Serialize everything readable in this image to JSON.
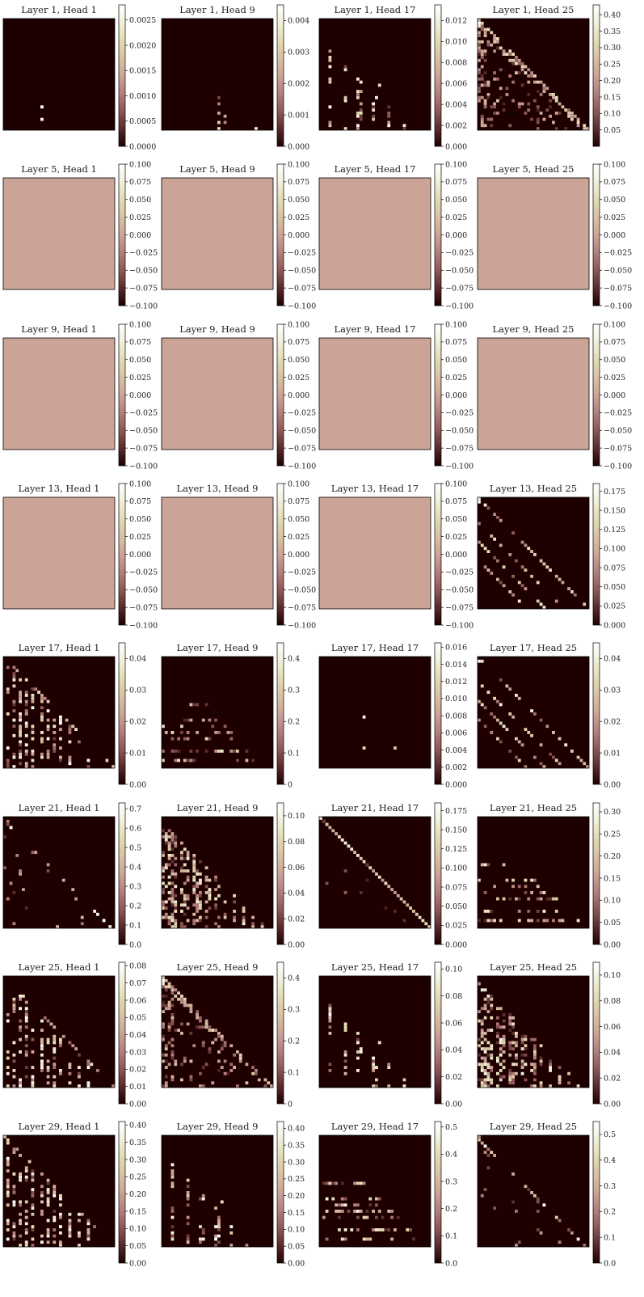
{
  "figure": {
    "colormap": "pink",
    "colormap_stops": [
      "#1e0000",
      "#5a2b2b",
      "#8e5858",
      "#b47f7f",
      "#cca497",
      "#d8c2a3",
      "#e2dbb3",
      "#f2f0dc",
      "#ffffff"
    ],
    "background": "#ffffff"
  },
  "chart_data": [
    {
      "type": "heatmap",
      "title": "Layer 1, Head 1",
      "colorbar_ticks": [
        "0.0000",
        "0.0005",
        "0.0010",
        "0.0015",
        "0.0020",
        "0.0025"
      ],
      "vmin": 0,
      "vmax": 0.0028,
      "uniform": false,
      "pattern": "sparse_two"
    },
    {
      "type": "heatmap",
      "title": "Layer 1, Head 9",
      "colorbar_ticks": [
        "0.000",
        "0.001",
        "0.002",
        "0.003",
        "0.004"
      ],
      "vmin": 0,
      "vmax": 0.0045,
      "uniform": false,
      "pattern": "sparse_bottom"
    },
    {
      "type": "heatmap",
      "title": "Layer 1, Head 17",
      "colorbar_ticks": [
        "0.000",
        "0.002",
        "0.004",
        "0.006",
        "0.008",
        "0.010",
        "0.012"
      ],
      "vmin": 0,
      "vmax": 0.0135,
      "uniform": false,
      "pattern": "sparse_columns"
    },
    {
      "type": "heatmap",
      "title": "Layer 1, Head 25",
      "colorbar_ticks": [
        "0.05",
        "0.10",
        "0.15",
        "0.20",
        "0.25",
        "0.30",
        "0.35",
        "0.40"
      ],
      "vmin": 0,
      "vmax": 0.43,
      "uniform": false,
      "pattern": "dense_triangle"
    },
    {
      "type": "heatmap",
      "title": "Layer 5, Head 1",
      "colorbar_ticks": [
        "−0.100",
        "−0.075",
        "−0.050",
        "−0.025",
        "0.000",
        "0.025",
        "0.050",
        "0.075",
        "0.100"
      ],
      "vmin": -0.1,
      "vmax": 0.1,
      "uniform": true,
      "value": 0.0
    },
    {
      "type": "heatmap",
      "title": "Layer 5, Head 9",
      "colorbar_ticks": [
        "−0.100",
        "−0.075",
        "−0.050",
        "−0.025",
        "0.000",
        "0.025",
        "0.050",
        "0.075",
        "0.100"
      ],
      "vmin": -0.1,
      "vmax": 0.1,
      "uniform": true,
      "value": 0.0
    },
    {
      "type": "heatmap",
      "title": "Layer 5, Head 17",
      "colorbar_ticks": [
        "−0.100",
        "−0.075",
        "−0.050",
        "−0.025",
        "0.000",
        "0.025",
        "0.050",
        "0.075",
        "0.100"
      ],
      "vmin": -0.1,
      "vmax": 0.1,
      "uniform": true,
      "value": 0.0
    },
    {
      "type": "heatmap",
      "title": "Layer 5, Head 25",
      "colorbar_ticks": [
        "−0.100",
        "−0.075",
        "−0.050",
        "−0.025",
        "0.000",
        "0.025",
        "0.050",
        "0.075",
        "0.100"
      ],
      "vmin": -0.1,
      "vmax": 0.1,
      "uniform": true,
      "value": 0.0
    },
    {
      "type": "heatmap",
      "title": "Layer 9, Head 1",
      "colorbar_ticks": [
        "−0.100",
        "−0.075",
        "−0.050",
        "−0.025",
        "0.000",
        "0.025",
        "0.050",
        "0.075",
        "0.100"
      ],
      "vmin": -0.1,
      "vmax": 0.1,
      "uniform": true,
      "value": 0.0
    },
    {
      "type": "heatmap",
      "title": "Layer 9, Head 9",
      "colorbar_ticks": [
        "−0.100",
        "−0.075",
        "−0.050",
        "−0.025",
        "0.000",
        "0.025",
        "0.050",
        "0.075",
        "0.100"
      ],
      "vmin": -0.1,
      "vmax": 0.1,
      "uniform": true,
      "value": 0.0
    },
    {
      "type": "heatmap",
      "title": "Layer 9, Head 17",
      "colorbar_ticks": [
        "−0.100",
        "−0.075",
        "−0.050",
        "−0.025",
        "0.000",
        "0.025",
        "0.050",
        "0.075",
        "0.100"
      ],
      "vmin": -0.1,
      "vmax": 0.1,
      "uniform": true,
      "value": 0.0
    },
    {
      "type": "heatmap",
      "title": "Layer 9, Head 25",
      "colorbar_ticks": [
        "−0.100",
        "−0.075",
        "−0.050",
        "−0.025",
        "0.000",
        "0.025",
        "0.050",
        "0.075",
        "0.100"
      ],
      "vmin": -0.1,
      "vmax": 0.1,
      "uniform": true,
      "value": 0.0
    },
    {
      "type": "heatmap",
      "title": "Layer 13, Head 1",
      "colorbar_ticks": [
        "−0.100",
        "−0.075",
        "−0.050",
        "−0.025",
        "0.000",
        "0.025",
        "0.050",
        "0.075",
        "0.100"
      ],
      "vmin": -0.1,
      "vmax": 0.1,
      "uniform": true,
      "value": 0.0
    },
    {
      "type": "heatmap",
      "title": "Layer 13, Head 9",
      "colorbar_ticks": [
        "−0.100",
        "−0.075",
        "−0.050",
        "−0.025",
        "0.000",
        "0.025",
        "0.050",
        "0.075",
        "0.100"
      ],
      "vmin": -0.1,
      "vmax": 0.1,
      "uniform": true,
      "value": 0.0
    },
    {
      "type": "heatmap",
      "title": "Layer 13, Head 17",
      "colorbar_ticks": [
        "−0.100",
        "−0.075",
        "−0.050",
        "−0.025",
        "0.000",
        "0.025",
        "0.050",
        "0.075",
        "0.100"
      ],
      "vmin": -0.1,
      "vmax": 0.1,
      "uniform": true,
      "value": 0.0
    },
    {
      "type": "heatmap",
      "title": "Layer 13, Head 25",
      "colorbar_ticks": [
        "0.000",
        "0.025",
        "0.050",
        "0.075",
        "0.100",
        "0.125",
        "0.150",
        "0.175"
      ],
      "vmin": 0,
      "vmax": 0.185,
      "uniform": false,
      "pattern": "diagonals"
    },
    {
      "type": "heatmap",
      "title": "Layer 17, Head 1",
      "colorbar_ticks": [
        "0.00",
        "0.01",
        "0.02",
        "0.03",
        "0.04"
      ],
      "vmin": 0,
      "vmax": 0.045,
      "uniform": false,
      "pattern": "columns_triangle"
    },
    {
      "type": "heatmap",
      "title": "Layer 17, Head 9",
      "colorbar_ticks": [
        "0",
        "0.1",
        "0.2",
        "0.3",
        "0.4"
      ],
      "vmin": 0,
      "vmax": 0.45,
      "uniform": false,
      "pattern": "rows_block"
    },
    {
      "type": "heatmap",
      "title": "Layer 17, Head 17",
      "colorbar_ticks": [
        "0.000",
        "0.002",
        "0.004",
        "0.006",
        "0.008",
        "0.010",
        "0.012",
        "0.014",
        "0.016"
      ],
      "vmin": 0,
      "vmax": 0.0165,
      "uniform": false,
      "pattern": "sparse_three"
    },
    {
      "type": "heatmap",
      "title": "Layer 17, Head 25",
      "colorbar_ticks": [
        "0.00",
        "0.01",
        "0.02",
        "0.03",
        "0.04"
      ],
      "vmin": 0,
      "vmax": 0.045,
      "uniform": false,
      "pattern": "diagonals"
    },
    {
      "type": "heatmap",
      "title": "Layer 21, Head 1",
      "colorbar_ticks": [
        "0.0",
        "0.1",
        "0.2",
        "0.3",
        "0.4",
        "0.5",
        "0.6",
        "0.7"
      ],
      "vmin": 0,
      "vmax": 0.73,
      "uniform": false,
      "pattern": "diagonal_sparse"
    },
    {
      "type": "heatmap",
      "title": "Layer 21, Head 9",
      "colorbar_ticks": [
        "0.00",
        "0.02",
        "0.04",
        "0.06",
        "0.08",
        "0.10"
      ],
      "vmin": 0,
      "vmax": 0.11,
      "uniform": false,
      "pattern": "dense_columns"
    },
    {
      "type": "heatmap",
      "title": "Layer 21, Head 17",
      "colorbar_ticks": [
        "0.000",
        "0.025",
        "0.050",
        "0.075",
        "0.100",
        "0.125",
        "0.150",
        "0.175"
      ],
      "vmin": 0,
      "vmax": 0.185,
      "uniform": false,
      "pattern": "main_diagonal"
    },
    {
      "type": "heatmap",
      "title": "Layer 21, Head 25",
      "colorbar_ticks": [
        "0.00",
        "0.05",
        "0.10",
        "0.15",
        "0.20",
        "0.25",
        "0.30"
      ],
      "vmin": 0,
      "vmax": 0.32,
      "uniform": false,
      "pattern": "rows_block"
    },
    {
      "type": "heatmap",
      "title": "Layer 25, Head 1",
      "colorbar_ticks": [
        "0.00",
        "0.01",
        "0.02",
        "0.03",
        "0.04",
        "0.05",
        "0.06",
        "0.07",
        "0.08"
      ],
      "vmin": 0,
      "vmax": 0.082,
      "uniform": false,
      "pattern": "columns_triangle"
    },
    {
      "type": "heatmap",
      "title": "Layer 25, Head 9",
      "colorbar_ticks": [
        "0",
        "0.1",
        "0.2",
        "0.3",
        "0.4"
      ],
      "vmin": 0,
      "vmax": 0.45,
      "uniform": false,
      "pattern": "dense_triangle"
    },
    {
      "type": "heatmap",
      "title": "Layer 25, Head 17",
      "colorbar_ticks": [
        "0.00",
        "0.02",
        "0.04",
        "0.06",
        "0.08",
        "0.10"
      ],
      "vmin": 0,
      "vmax": 0.105,
      "uniform": false,
      "pattern": "sparse_columns"
    },
    {
      "type": "heatmap",
      "title": "Layer 25, Head 25",
      "colorbar_ticks": [
        "0.00",
        "0.02",
        "0.04",
        "0.06",
        "0.08",
        "0.10"
      ],
      "vmin": 0,
      "vmax": 0.11,
      "uniform": false,
      "pattern": "dense_columns"
    },
    {
      "type": "heatmap",
      "title": "Layer 29, Head 1",
      "colorbar_ticks": [
        "0.00",
        "0.05",
        "0.10",
        "0.15",
        "0.20",
        "0.25",
        "0.30",
        "0.35",
        "0.40"
      ],
      "vmin": 0,
      "vmax": 0.41,
      "uniform": false,
      "pattern": "columns_triangle"
    },
    {
      "type": "heatmap",
      "title": "Layer 29, Head 9",
      "colorbar_ticks": [
        "0.00",
        "0.05",
        "0.10",
        "0.15",
        "0.20",
        "0.25",
        "0.30",
        "0.35",
        "0.40"
      ],
      "vmin": 0,
      "vmax": 0.42,
      "uniform": false,
      "pattern": "sparse_columns"
    },
    {
      "type": "heatmap",
      "title": "Layer 29, Head 17",
      "colorbar_ticks": [
        "0.0",
        "0.1",
        "0.2",
        "0.3",
        "0.4",
        "0.5"
      ],
      "vmin": 0,
      "vmax": 0.52,
      "uniform": false,
      "pattern": "rows_block"
    },
    {
      "type": "heatmap",
      "title": "Layer 29, Head 25",
      "colorbar_ticks": [
        "0.0",
        "0.1",
        "0.2",
        "0.3",
        "0.4",
        "0.5"
      ],
      "vmin": 0,
      "vmax": 0.55,
      "uniform": false,
      "pattern": "diagonal_sparse"
    }
  ]
}
